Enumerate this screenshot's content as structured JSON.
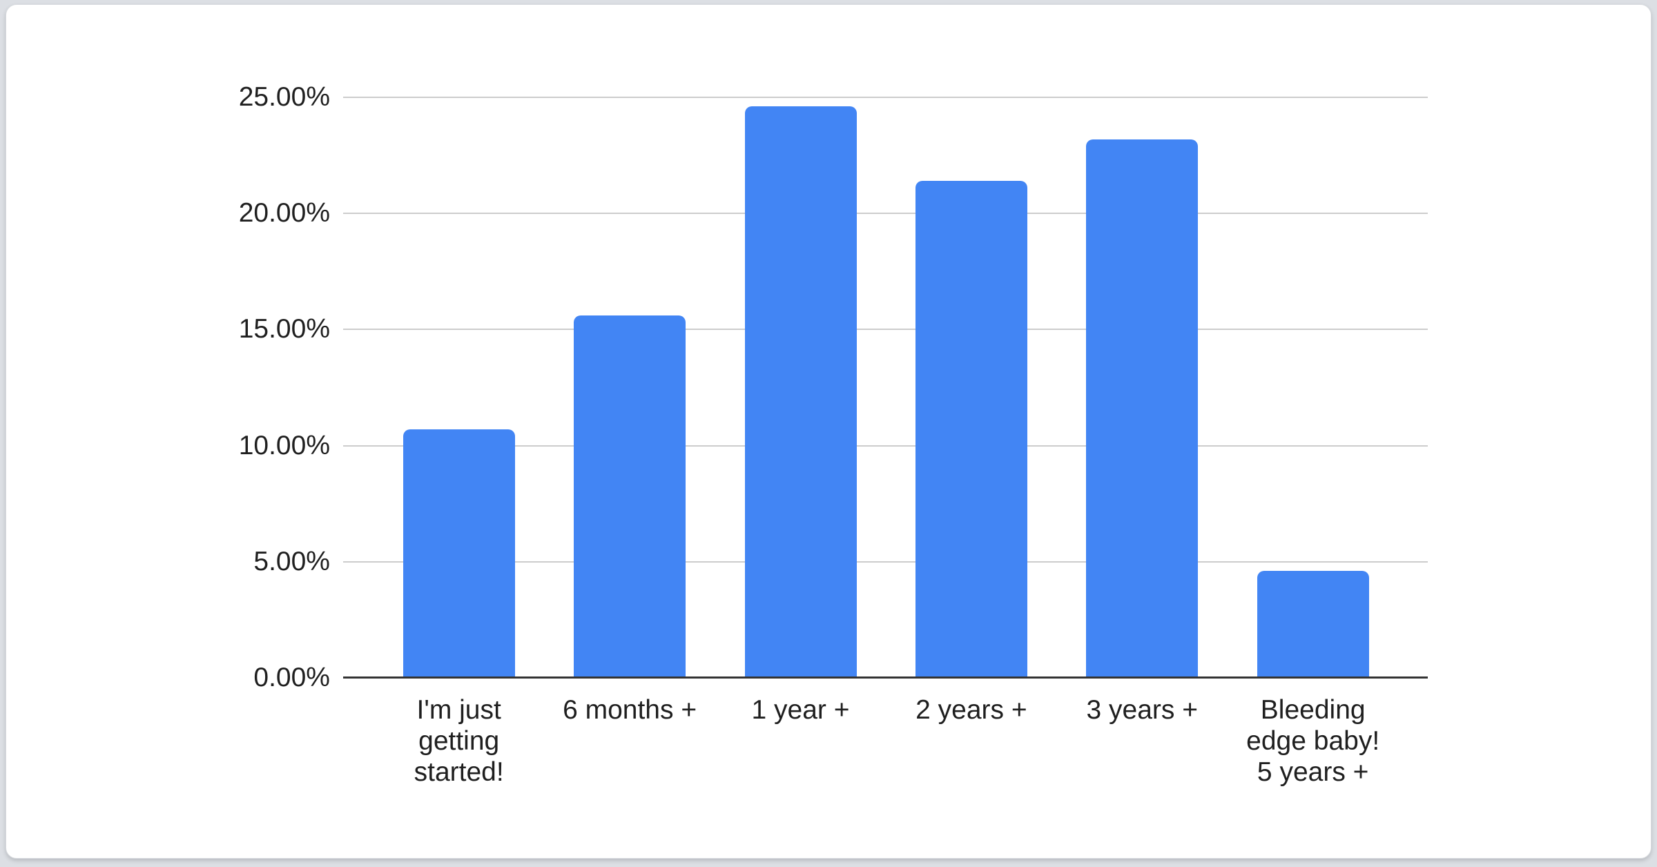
{
  "chart_data": {
    "type": "bar",
    "title": "",
    "xlabel": "",
    "ylabel": "",
    "categories": [
      "I'm just getting started!",
      "6 months +",
      "1 year +",
      "2 years +",
      "3 years +",
      "Bleeding edge baby! 5 years +"
    ],
    "values": [
      10.7,
      15.6,
      24.6,
      21.4,
      23.2,
      4.6
    ],
    "unit": "%",
    "ylim": [
      0,
      25
    ],
    "y_tick_interval": 5,
    "y_tick_labels": [
      "25.00%",
      "20.00%",
      "15.00%",
      "10.00%",
      "5.00%",
      "0.00%"
    ],
    "grid": "horizontal",
    "legend_position": "none",
    "colors": {
      "bar": "#4285f4",
      "gridline": "#cccccc",
      "axis_line": "#333333",
      "label_text": "#1f1f1f",
      "card_background": "#ffffff",
      "page_background": "#dcdfe4"
    }
  }
}
